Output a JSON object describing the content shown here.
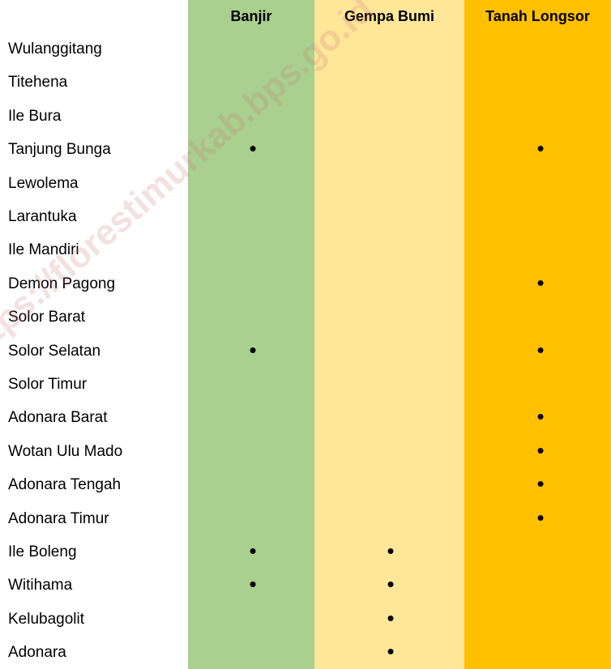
{
  "table": {
    "columns": [
      "Banjir",
      "Gempa Bumi",
      "Tanah Longsor"
    ],
    "rows": [
      {
        "name": "Wulanggitang",
        "cells": [
          null,
          null,
          null
        ]
      },
      {
        "name": "Titehena",
        "cells": [
          null,
          null,
          null
        ]
      },
      {
        "name": "Ile Bura",
        "cells": [
          null,
          null,
          null
        ]
      },
      {
        "name": "Tanjung Bunga",
        "cells": [
          "•",
          null,
          "•"
        ]
      },
      {
        "name": "Lewolema",
        "cells": [
          null,
          null,
          null
        ]
      },
      {
        "name": "Larantuka",
        "cells": [
          null,
          null,
          null
        ]
      },
      {
        "name": "Ile Mandiri",
        "cells": [
          null,
          null,
          null
        ]
      },
      {
        "name": "Demon Pagong",
        "cells": [
          null,
          null,
          "•"
        ]
      },
      {
        "name": "Solor Barat",
        "cells": [
          null,
          null,
          null
        ]
      },
      {
        "name": "Solor Selatan",
        "cells": [
          "•",
          null,
          "•"
        ]
      },
      {
        "name": "Solor Timur",
        "cells": [
          null,
          null,
          null
        ]
      },
      {
        "name": "Adonara Barat",
        "cells": [
          null,
          null,
          "•"
        ]
      },
      {
        "name": "Wotan Ulu Mado",
        "cells": [
          null,
          null,
          "•"
        ]
      },
      {
        "name": "Adonara Tengah",
        "cells": [
          null,
          null,
          "•"
        ]
      },
      {
        "name": "Adonara Timur",
        "cells": [
          null,
          null,
          "•"
        ]
      },
      {
        "name": "Ile Boleng",
        "cells": [
          "•",
          "•",
          null
        ]
      },
      {
        "name": "Witihama",
        "cells": [
          "•",
          "•",
          null
        ]
      },
      {
        "name": "Kelubagolit",
        "cells": [
          null,
          "•",
          null
        ]
      },
      {
        "name": "Adonara",
        "cells": [
          null,
          "•",
          null
        ]
      }
    ]
  },
  "watermark": "https://florestimurkab.bps.go.id"
}
